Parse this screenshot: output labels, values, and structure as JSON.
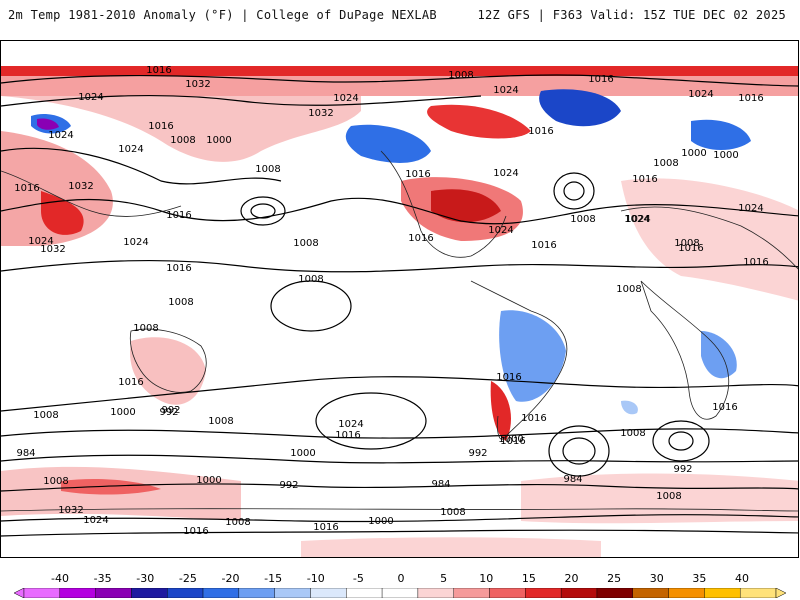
{
  "header": {
    "title": "2m Temp 1981-2010 Anomaly (°F) | College of DuPage NEXLAB",
    "run_info": "12Z GFS | F363 Valid: 15Z TUE DEC 02 2025"
  },
  "map": {
    "contour_labels": [
      "1016",
      "1032",
      "1008",
      "1016",
      "1024",
      "1024",
      "1032",
      "1024",
      "1016",
      "1024",
      "1016",
      "1024",
      "1032",
      "1008",
      "1000",
      "1016",
      "1024",
      "1008",
      "1016",
      "1024",
      "1000",
      "1008",
      "1016",
      "1024",
      "1008",
      "1008",
      "1016",
      "1024",
      "1016",
      "1032",
      "1016",
      "1024",
      "1016",
      "1008",
      "1024",
      "1024",
      "1016",
      "1008",
      "1016",
      "1024",
      "1008",
      "1008",
      "1016",
      "1008",
      "1000",
      "992",
      "1016",
      "1008",
      "1024",
      "1016",
      "1008",
      "1000",
      "1016",
      "1016",
      "992",
      "984",
      "1000",
      "1016",
      "992",
      "1008",
      "992",
      "984",
      "1008",
      "1000",
      "992",
      "1008",
      "1032",
      "1016",
      "1000",
      "1024",
      "1008",
      "1016",
      "1000",
      "984",
      "1008",
      "1016"
    ]
  },
  "colorbar": {
    "ticks": [
      "-40",
      "-35",
      "-30",
      "-25",
      "-20",
      "-15",
      "-10",
      "-5",
      "0",
      "5",
      "10",
      "15",
      "20",
      "25",
      "30",
      "35",
      "40"
    ],
    "colors": [
      "#e86bff",
      "#b400e0",
      "#8a00b4",
      "#1e1aa0",
      "#1b46c8",
      "#2f6fe6",
      "#6d9ff2",
      "#a9c8f7",
      "#dbe8fb",
      "#ffffff",
      "#ffffff",
      "#fbd4d4",
      "#f59a9a",
      "#ef6262",
      "#e22828",
      "#b40c0c",
      "#7e0000",
      "#c46400",
      "#f59000",
      "#ffc000",
      "#ffe27a"
    ]
  }
}
